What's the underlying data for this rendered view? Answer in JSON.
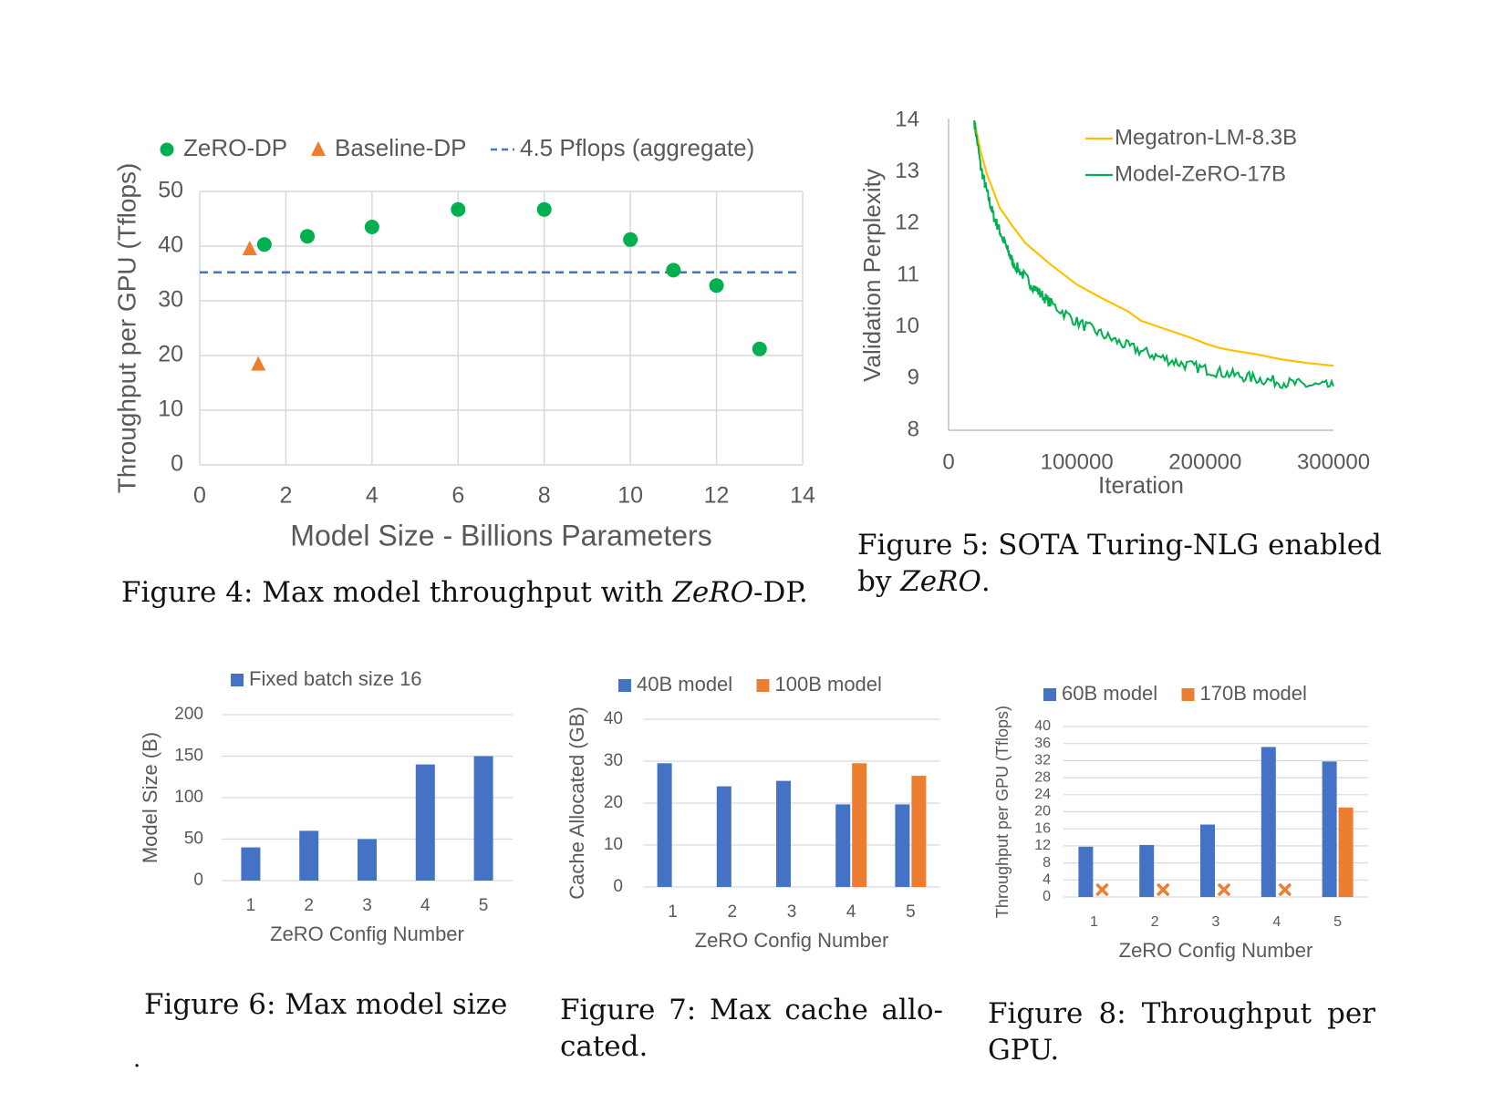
{
  "colors": {
    "blue": "#4472c4",
    "orange": "#ed7d31",
    "green": "#00b050",
    "yellow": "#ffc000",
    "grid": "#d9d9d9",
    "axis_text": "#595959"
  },
  "chart_data": [
    {
      "id": "fig4",
      "type": "scatter",
      "xlabel": "Model Size - Billions Parameters",
      "ylabel": "Throughput per GPU (Tflops)",
      "xlim": [
        0,
        14
      ],
      "ylim": [
        0,
        50
      ],
      "xticks": [
        0,
        2,
        4,
        6,
        8,
        10,
        12,
        14
      ],
      "yticks": [
        0,
        10,
        20,
        30,
        40,
        50
      ],
      "grid": true,
      "legend_position": "top",
      "series": [
        {
          "name": "ZeRO-DP",
          "marker": "circle",
          "color": "#00b050",
          "points": [
            [
              1.5,
              40.3
            ],
            [
              2.5,
              41.8
            ],
            [
              4,
              43.5
            ],
            [
              6,
              46.7
            ],
            [
              8,
              46.7
            ],
            [
              10,
              41.2
            ],
            [
              11,
              35.6
            ],
            [
              12,
              32.8
            ],
            [
              13,
              21.2
            ]
          ]
        },
        {
          "name": "Baseline-DP",
          "marker": "triangle",
          "color": "#ed7d31",
          "points": [
            [
              1.16,
              39.5
            ],
            [
              1.36,
              18.4
            ]
          ]
        },
        {
          "name": "4.5 Pflops (aggregate)",
          "marker": "dashed-line",
          "color": "#4472c4",
          "y": 35.2
        }
      ]
    },
    {
      "id": "fig5",
      "type": "line",
      "xlabel": "Iteration",
      "ylabel": "Validation Perplexity",
      "xlim": [
        0,
        300000
      ],
      "ylim": [
        8,
        14
      ],
      "xticks": [
        0,
        100000,
        200000,
        300000
      ],
      "yticks": [
        8,
        9,
        10,
        11,
        12,
        13,
        14
      ],
      "grid": false,
      "legend_position": "top-right",
      "series": [
        {
          "name": "Megatron-LM-8.3B",
          "color": "#ffc000",
          "points": [
            [
              20000,
              14.0
            ],
            [
              25000,
              13.4
            ],
            [
              30000,
              12.95
            ],
            [
              40000,
              12.3
            ],
            [
              50000,
              11.95
            ],
            [
              60000,
              11.62
            ],
            [
              80000,
              11.2
            ],
            [
              100000,
              10.82
            ],
            [
              120000,
              10.55
            ],
            [
              140000,
              10.3
            ],
            [
              150000,
              10.12
            ],
            [
              170000,
              9.95
            ],
            [
              190000,
              9.78
            ],
            [
              200000,
              9.68
            ],
            [
              210000,
              9.6
            ],
            [
              220000,
              9.55
            ],
            [
              240000,
              9.47
            ],
            [
              260000,
              9.37
            ],
            [
              280000,
              9.3
            ],
            [
              300000,
              9.25
            ]
          ]
        },
        {
          "name": "Model-ZeRO-17B",
          "color": "#00b050",
          "points": [
            [
              20000,
              14.0
            ],
            [
              25000,
              13.1
            ],
            [
              30000,
              12.6
            ],
            [
              35000,
              12.15
            ],
            [
              40000,
              11.85
            ],
            [
              45000,
              11.55
            ],
            [
              50000,
              11.25
            ],
            [
              60000,
              10.95
            ],
            [
              70000,
              10.68
            ],
            [
              80000,
              10.45
            ],
            [
              100000,
              10.1
            ],
            [
              120000,
              9.85
            ],
            [
              140000,
              9.62
            ],
            [
              160000,
              9.45
            ],
            [
              180000,
              9.3
            ],
            [
              200000,
              9.18
            ],
            [
              220000,
              9.08
            ],
            [
              240000,
              9.0
            ],
            [
              260000,
              8.93
            ],
            [
              280000,
              8.87
            ],
            [
              300000,
              8.85
            ]
          ]
        }
      ]
    },
    {
      "id": "fig6",
      "type": "bar",
      "xlabel": "ZeRO Config Number",
      "ylabel": "Model Size (B)",
      "categories": [
        "1",
        "2",
        "3",
        "4",
        "5"
      ],
      "ylim": [
        0,
        200
      ],
      "yticks": [
        0,
        50,
        100,
        150,
        200
      ],
      "grid": true,
      "legend_position": "top",
      "series": [
        {
          "name": "Fixed batch size 16",
          "color": "#4472c4",
          "values": [
            40,
            60,
            50,
            140,
            150
          ]
        }
      ]
    },
    {
      "id": "fig7",
      "type": "bar",
      "xlabel": "ZeRO Config Number",
      "ylabel": "Cache Allocated (GB)",
      "categories": [
        "1",
        "2",
        "3",
        "4",
        "5"
      ],
      "ylim": [
        0,
        40
      ],
      "yticks": [
        0,
        10,
        20,
        30,
        40
      ],
      "grid": true,
      "legend_position": "top",
      "series": [
        {
          "name": "40B model",
          "color": "#4472c4",
          "values": [
            29.5,
            24,
            25.3,
            19.7,
            19.7
          ]
        },
        {
          "name": "100B model",
          "color": "#ed7d31",
          "values": [
            null,
            null,
            null,
            29.5,
            26.5
          ]
        }
      ]
    },
    {
      "id": "fig8",
      "type": "bar",
      "xlabel": "ZeRO Config Number",
      "ylabel": "Throughput per GPU (Tflops)",
      "categories": [
        "1",
        "2",
        "3",
        "4",
        "5"
      ],
      "ylim": [
        0,
        40
      ],
      "yticks": [
        0,
        4,
        8,
        12,
        16,
        20,
        24,
        28,
        32,
        36,
        40
      ],
      "grid": true,
      "legend_position": "top",
      "series": [
        {
          "name": "60B model",
          "color": "#4472c4",
          "values": [
            11.8,
            12.2,
            17,
            35.2,
            31.8
          ]
        },
        {
          "name": "170B model",
          "color": "#ed7d31",
          "values": [
            null,
            null,
            null,
            null,
            21
          ],
          "missing_marker": "x"
        }
      ]
    }
  ],
  "captions": {
    "fig4": {
      "prefix": "Figure 4:  Max model throughput with ",
      "italic": "ZeRO",
      "suffix": "-DP."
    },
    "fig5": {
      "line1": "Figure 5:  SOTA Turing-NLG enabled",
      "line2_prefix": "by ",
      "line2_italic": "ZeRO",
      "line2_suffix": "."
    },
    "fig6": {
      "line1": "Figure 6:  Max model size",
      "line2": "."
    },
    "fig7": {
      "line1": "Figure 7:  Max cache allo-",
      "line2": "cated."
    },
    "fig8": {
      "line1": "Figure 8:  Throughput per",
      "line2": "GPU."
    }
  }
}
